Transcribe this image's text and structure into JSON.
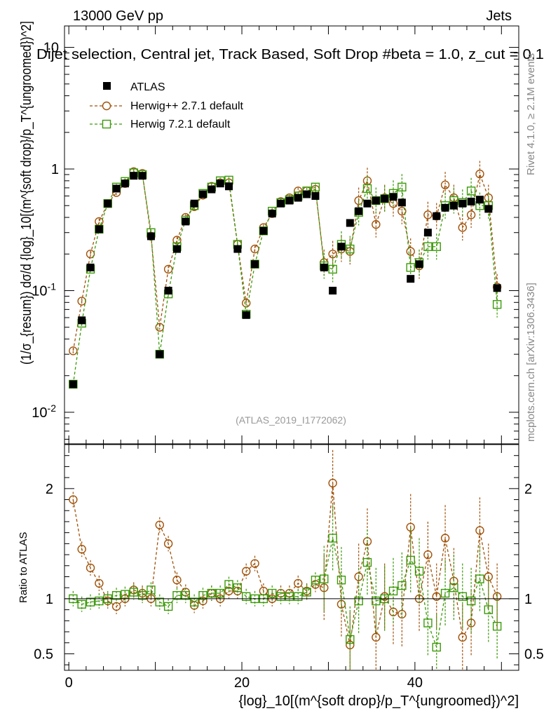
{
  "header": {
    "left": "13000 GeV pp",
    "right": "Jets",
    "selection": "Dijet selection, Central jet, Track Based, Soft Drop #beta = 1.0, z_cut = 0.1"
  },
  "side": {
    "rivet": "Rivet 4.1.0, ≥ 2.1M events",
    "mcplots": "mcplots.cern.ch [arXiv:1306.3436]"
  },
  "watermark": "(ATLAS_2019_I1772062)",
  "colors": {
    "atlas": "#000000",
    "herwigpp": "#a0520a",
    "herwig7": "#3c9a0a"
  },
  "chart_data": {
    "type": "scatter",
    "title": "Dijet selection, Central jet, Track Based, Soft Drop #beta = 1.0, z_cut = 0.1",
    "xlabel": "{log}_10[(m^{soft drop}/p_T^{ungroomed})^2]",
    "ylabel": "(1/σ_{resum}) dσ/d {log}_10[(m^{soft drop}/p_T^{ungroomed})^2]",
    "ratio_ylabel": "Ratio to ATLAS",
    "xlim": [
      -0.5,
      52
    ],
    "ylim": [
      0.0055,
      15
    ],
    "ylog": true,
    "ratio_ylim": [
      0.35,
      2.4
    ],
    "x_ticks": [
      "0",
      "20",
      "40"
    ],
    "y_ticks": [
      "10^-2",
      "10^-1",
      "1",
      "10"
    ],
    "ratio_ticks": [
      "0.5",
      "1",
      "2"
    ],
    "legend": [
      "ATLAS",
      "Herwig++ 2.7.1 default",
      "Herwig 7.2.1 default"
    ],
    "x": [
      0.5,
      1.5,
      2.5,
      3.5,
      4.5,
      5.5,
      6.5,
      7.5,
      8.5,
      9.5,
      10.5,
      11.5,
      12.5,
      13.5,
      14.5,
      15.5,
      16.5,
      17.5,
      18.5,
      19.5,
      20.5,
      21.5,
      22.5,
      23.5,
      24.5,
      25.5,
      26.5,
      27.5,
      28.5,
      29.5,
      30.5,
      31.5,
      32.5,
      33.5,
      34.5,
      35.5,
      36.5,
      37.5,
      38.5,
      39.5,
      40.5,
      41.5,
      42.5,
      43.5,
      44.5,
      45.5,
      46.5,
      47.5,
      48.5,
      49.5
    ],
    "series": [
      {
        "name": "ATLAS",
        "marker": "square-filled",
        "values": [
          0.017,
          0.057,
          0.155,
          0.32,
          0.52,
          0.69,
          0.76,
          0.88,
          0.88,
          0.28,
          0.03,
          0.1,
          0.22,
          0.37,
          0.52,
          0.62,
          0.68,
          0.76,
          0.72,
          0.22,
          0.063,
          0.165,
          0.31,
          0.43,
          0.52,
          0.55,
          0.58,
          0.62,
          0.6,
          0.155,
          0.1,
          0.23,
          0.36,
          0.45,
          0.52,
          0.55,
          0.57,
          0.59,
          0.53,
          0.125,
          0.165,
          0.3,
          0.41,
          0.48,
          0.5,
          0.52,
          0.54,
          0.56,
          0.47,
          0.105
        ]
      },
      {
        "name": "Herwig++ 2.7.1 default",
        "marker": "circle-open",
        "values": [
          0.032,
          0.082,
          0.2,
          0.37,
          0.52,
          0.64,
          0.76,
          0.95,
          0.92,
          0.28,
          0.05,
          0.15,
          0.26,
          0.4,
          0.49,
          0.61,
          0.72,
          0.77,
          0.77,
          0.24,
          0.079,
          0.22,
          0.33,
          0.43,
          0.54,
          0.58,
          0.66,
          0.66,
          0.68,
          0.17,
          0.2,
          0.22,
          0.21,
          0.55,
          0.8,
          0.35,
          0.58,
          0.52,
          0.45,
          0.21,
          0.16,
          0.42,
          0.41,
          0.74,
          0.58,
          0.33,
          0.42,
          0.91,
          0.58,
          0.107
        ]
      },
      {
        "name": "Herwig 7.2.1 default",
        "marker": "square-open",
        "values": [
          0.017,
          0.054,
          0.15,
          0.32,
          0.52,
          0.71,
          0.79,
          0.93,
          0.9,
          0.3,
          0.03,
          0.094,
          0.23,
          0.38,
          0.5,
          0.63,
          0.71,
          0.8,
          0.81,
          0.24,
          0.064,
          0.165,
          0.31,
          0.45,
          0.53,
          0.56,
          0.6,
          0.66,
          0.71,
          0.16,
          0.15,
          0.24,
          0.22,
          0.44,
          0.69,
          0.55,
          0.57,
          0.63,
          0.71,
          0.155,
          0.17,
          0.23,
          0.23,
          0.5,
          0.55,
          0.53,
          0.66,
          0.5,
          0.5,
          0.077
        ]
      }
    ],
    "ratio": [
      {
        "name": "Herwig++ 2.7.1 default",
        "values": [
          1.9,
          1.45,
          1.28,
          1.14,
          0.98,
          0.93,
          1.0,
          1.08,
          1.05,
          1.0,
          1.67,
          1.5,
          1.17,
          1.06,
          0.94,
          0.98,
          1.05,
          1.0,
          1.07,
          1.07,
          1.25,
          1.32,
          1.07,
          1.0,
          1.05,
          1.05,
          1.14,
          1.07,
          1.13,
          1.1,
          2.05,
          0.95,
          0.58,
          1.2,
          1.52,
          0.65,
          1.02,
          0.88,
          0.86,
          1.65,
          1.0,
          1.4,
          1.02,
          1.55,
          1.16,
          0.65,
          0.78,
          1.62,
          1.2,
          1.02
        ]
      },
      {
        "name": "Herwig 7.2.1 default",
        "values": [
          1.0,
          0.95,
          0.97,
          0.98,
          1.0,
          1.03,
          1.04,
          1.06,
          1.03,
          1.08,
          0.97,
          0.93,
          1.03,
          1.03,
          0.97,
          1.03,
          1.05,
          1.05,
          1.13,
          1.1,
          1.02,
          1.0,
          1.0,
          1.05,
          1.02,
          1.02,
          1.02,
          1.06,
          1.17,
          1.18,
          1.55,
          1.17,
          0.63,
          0.98,
          1.33,
          0.98,
          1.0,
          1.07,
          1.12,
          1.35,
          1.25,
          0.78,
          0.56,
          1.05,
          1.1,
          1.02,
          0.98,
          1.18,
          0.9,
          0.75
        ]
      }
    ]
  }
}
